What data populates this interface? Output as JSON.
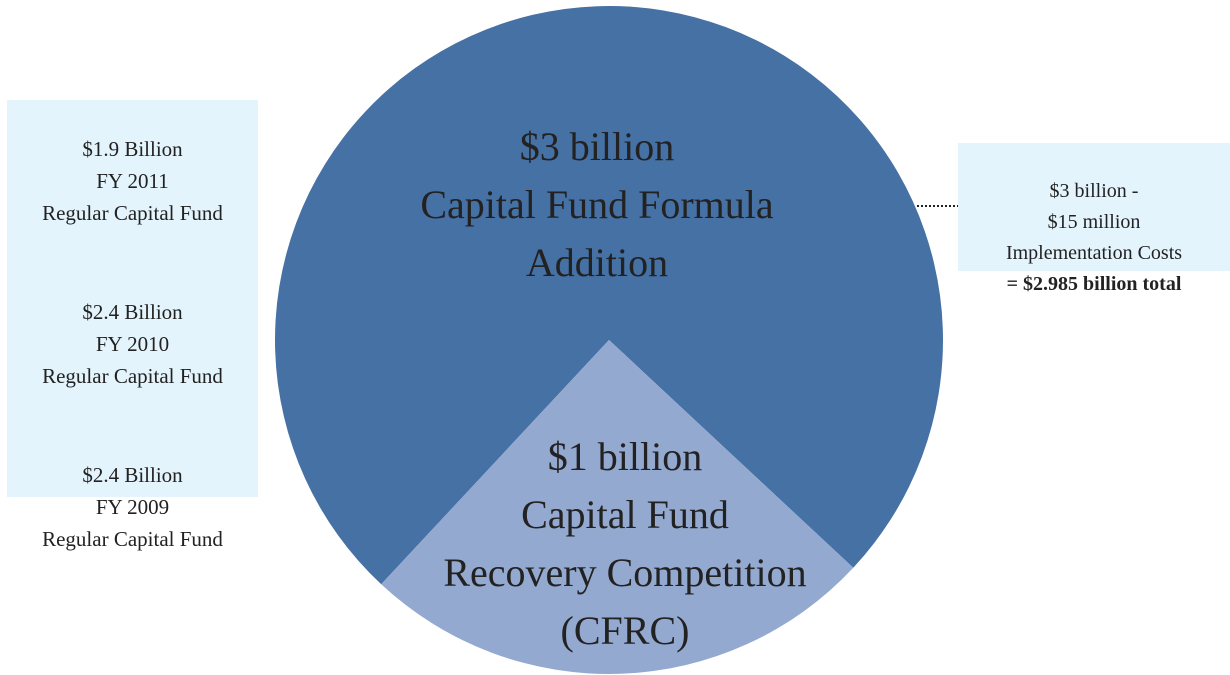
{
  "chart_data": {
    "type": "pie",
    "categories": [
      "Capital Fund Formula\nAddition",
      "Capital Fund\nRecovery Competition\n(CFRC)"
    ],
    "values": [
      3,
      1
    ],
    "value_labels": [
      "$3 billion",
      "$1 billion"
    ],
    "colors": [
      "#4671a5",
      "#94a9d0"
    ]
  },
  "left_box": {
    "items": [
      "$1.9 Billion\nFY 2011\nRegular Capital Fund",
      "$2.4 Billion\nFY 2010\nRegular Capital Fund",
      "$2.4 Billion\nFY 2009\nRegular Capital Fund"
    ]
  },
  "right_box": {
    "text": "$3 billion -\n$15 million\nImplementation Costs",
    "total": "= $2.985 billion total"
  }
}
